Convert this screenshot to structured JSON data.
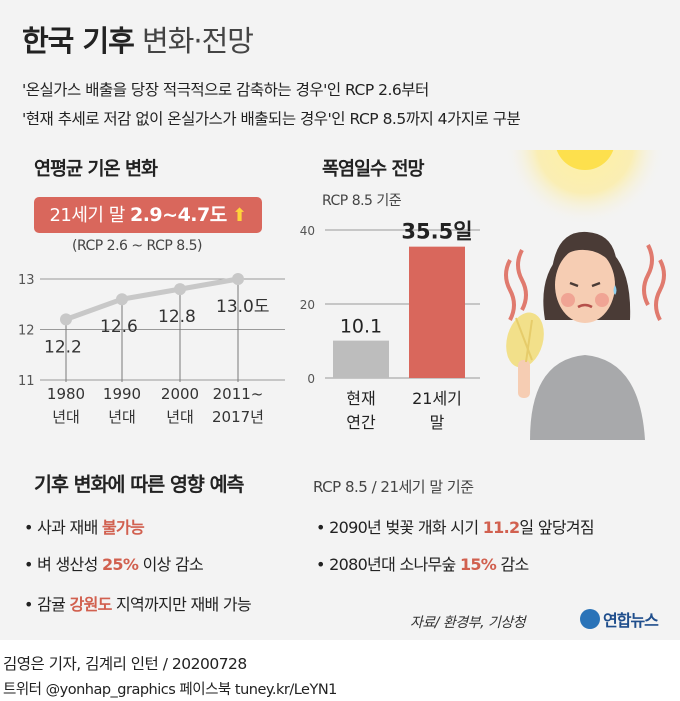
{
  "title": {
    "bold": "한국 기후",
    "light": "변화·전망"
  },
  "subtitle": {
    "line1": "'온실가스 배출을 당장 적극적으로 감축하는 경우'인 RCP 2.6부터",
    "line2": "'현재 추세로 저감 없이 온실가스가 배출되는 경우'인 RCP 8.5까지 4가지로 구분"
  },
  "temp_section": {
    "header": "연평균 기온 변화",
    "badge_prefix": "21세기 말 ",
    "badge_value": "2.9~4.7도",
    "badge_arrow": "⬆",
    "badge_note": "(RCP 2.6 ~ RCP 8.5)"
  },
  "heat_section": {
    "header": "폭염일수 전망",
    "note": "RCP 8.5 기준"
  },
  "impacts": {
    "header": "기후 변화에 따른 영향 예측",
    "note": "RCP 8.5 / 21세기 말 기준",
    "items": [
      {
        "pre": "사과 재배 ",
        "hl": "불가능",
        "post": ""
      },
      {
        "pre": "벼 생산성 ",
        "hl": "25%",
        "post": " 이상 감소"
      },
      {
        "pre": "감귤 ",
        "hl": "강원도",
        "post": " 지역까지만 재배 가능"
      },
      {
        "pre": "2090년 벚꽃 개화 시기 ",
        "hl": "11.2",
        "post": "일 앞당겨짐"
      },
      {
        "pre": "2080년대 소나무숲 ",
        "hl": "15%",
        "post": " 감소"
      }
    ]
  },
  "source": "자료/ 환경부, 기상청",
  "logo": "연합뉴스",
  "footer": {
    "line1": "김영은 기자, 김계리 인턴  / 20200728",
    "line2": "트위터 @yonhap_graphics  페이스북 tuney.kr/LeYN1"
  },
  "colors": {
    "accent": "#d9675c",
    "line": "#c8c8c8",
    "bar_gray": "#bdbdbd",
    "bar_red": "#d9675c"
  },
  "chart_data": [
    {
      "type": "line",
      "title": "연평균 기온 변화",
      "categories": [
        [
          "1980",
          "년대"
        ],
        [
          "1990",
          "년대"
        ],
        [
          "2000",
          "년대"
        ],
        [
          "2011~",
          "2017년"
        ]
      ],
      "values": [
        12.2,
        12.6,
        12.8,
        13.0
      ],
      "value_labels": [
        "12.2",
        "12.6",
        "12.8",
        "13.0도"
      ],
      "yticks": [
        "13",
        "12",
        "11"
      ],
      "ylim": [
        11,
        13
      ],
      "grid": true
    },
    {
      "type": "bar",
      "title": "폭염일수 전망",
      "subtitle": "RCP 8.5 기준",
      "categories": [
        [
          "현재",
          "연간"
        ],
        [
          "21세기",
          "말"
        ]
      ],
      "values": [
        10.1,
        35.5
      ],
      "value_labels": [
        "10.1",
        "35.5일"
      ],
      "yticks": [
        "40",
        "20",
        "0"
      ],
      "ylim": [
        0,
        40
      ],
      "colors": [
        "#bdbdbd",
        "#d9675c"
      ]
    }
  ]
}
